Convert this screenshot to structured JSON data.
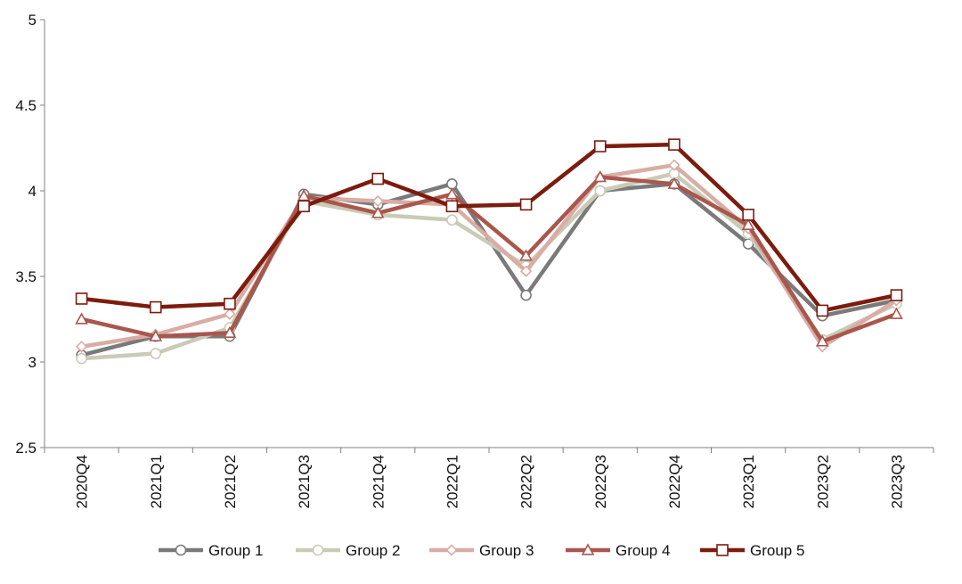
{
  "chart_data": {
    "type": "line",
    "title": "",
    "xlabel": "",
    "ylabel": "",
    "categories": [
      "2020Q4",
      "2021Q1",
      "2021Q2",
      "2021Q3",
      "2021Q4",
      "2022Q1",
      "2022Q2",
      "2022Q3",
      "2022Q4",
      "2023Q1",
      "2023Q2",
      "2023Q3"
    ],
    "ylim": [
      2.5,
      5
    ],
    "yticks": [
      "2.5",
      "3",
      "3.5",
      "4",
      "4.5",
      "5"
    ],
    "grid": false,
    "legend_position": "bottom",
    "series": [
      {
        "name": "Group 1",
        "color": "#7a7a7a",
        "marker": "circle",
        "values": [
          3.04,
          3.15,
          3.15,
          3.98,
          3.92,
          4.04,
          3.39,
          4.0,
          4.04,
          3.69,
          3.27,
          3.36
        ]
      },
      {
        "name": "Group 2",
        "color": "#c9cbb6",
        "marker": "circle",
        "values": [
          3.02,
          3.05,
          3.2,
          3.94,
          3.86,
          3.83,
          3.56,
          4.0,
          4.1,
          3.75,
          3.13,
          3.34
        ]
      },
      {
        "name": "Group 3",
        "color": "#d9aca4",
        "marker": "diamond",
        "values": [
          3.09,
          3.16,
          3.28,
          3.96,
          3.94,
          3.92,
          3.53,
          4.08,
          4.15,
          3.78,
          3.09,
          3.36
        ]
      },
      {
        "name": "Group 4",
        "color": "#a9574d",
        "marker": "triangle",
        "values": [
          3.25,
          3.15,
          3.17,
          3.97,
          3.87,
          3.98,
          3.62,
          4.08,
          4.04,
          3.8,
          3.12,
          3.28
        ]
      },
      {
        "name": "Group 5",
        "color": "#7b1c0e",
        "marker": "square",
        "values": [
          3.37,
          3.32,
          3.34,
          3.91,
          4.07,
          3.91,
          3.92,
          4.26,
          4.27,
          3.86,
          3.3,
          3.39
        ]
      }
    ]
  }
}
